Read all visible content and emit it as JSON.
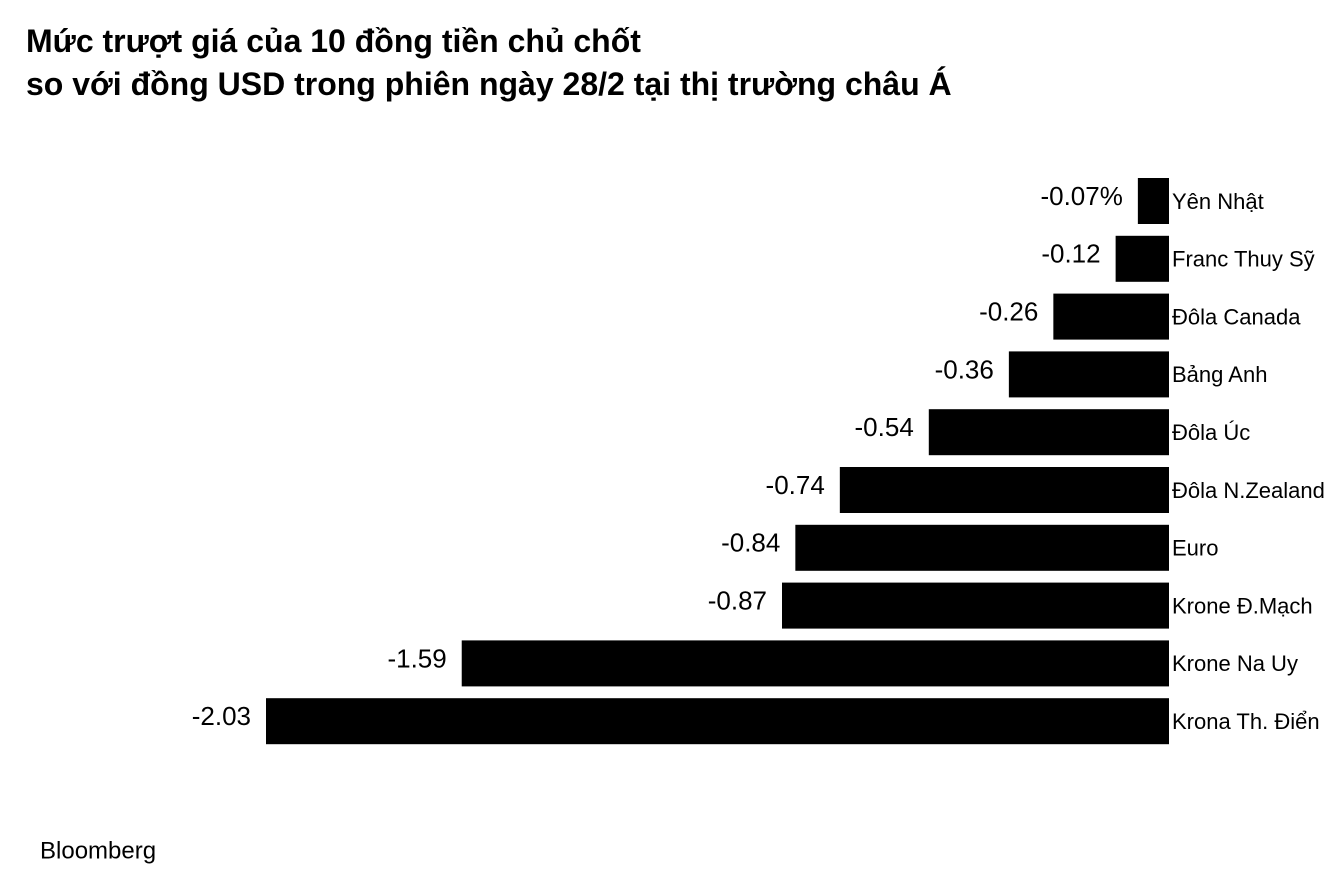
{
  "chart_data": {
    "type": "barh",
    "title": [
      "Mức trượt giá của 10 đồng tiền chủ chốt",
      "so với đồng USD trong phiên ngày 28/2 tại thị trường châu Á"
    ],
    "categories": [
      "Yên Nhật",
      "Franc Thuy Sỹ",
      "Đôla Canada",
      "Bảng Anh",
      "Đôla Úc",
      "Đôla N.Zealand",
      "Euro",
      "Krone Đ.Mạch",
      "Krone Na Uy",
      "Krona Th. Điển"
    ],
    "values": [
      -0.07,
      -0.12,
      -0.26,
      -0.36,
      -0.54,
      -0.74,
      -0.84,
      -0.87,
      -1.59,
      -2.03
    ],
    "value_labels": [
      "-0.07%",
      "-0.12",
      "-0.26",
      "-0.36",
      "-0.54",
      "-0.74",
      "-0.84",
      "-0.87",
      "-1.59",
      "-2.03"
    ],
    "color": "#000000",
    "source": "Bloomberg"
  }
}
